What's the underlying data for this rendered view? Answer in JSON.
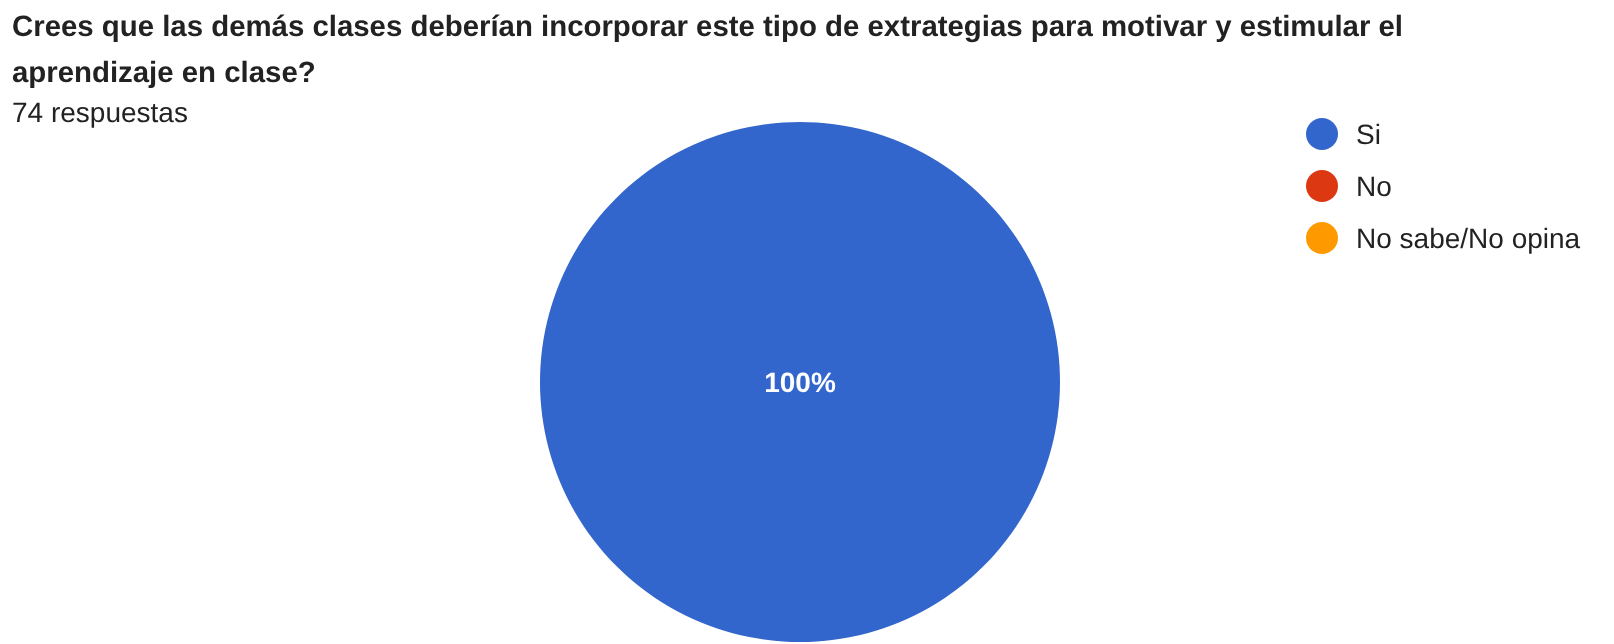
{
  "chart_data": {
    "type": "pie",
    "title": "Crees que las demás clases deberían incorporar este tipo de extrategias para motivar y estimular el aprendizaje en clase?",
    "subtitle": "74 respuestas",
    "categories": [
      "Si",
      "No",
      "No sabe/No opina"
    ],
    "values": [
      100,
      0,
      0
    ],
    "colors": [
      "#3366cc",
      "#dc3912",
      "#ff9900"
    ],
    "value_labels": [
      "100%",
      null,
      null
    ],
    "legend": "top right"
  }
}
